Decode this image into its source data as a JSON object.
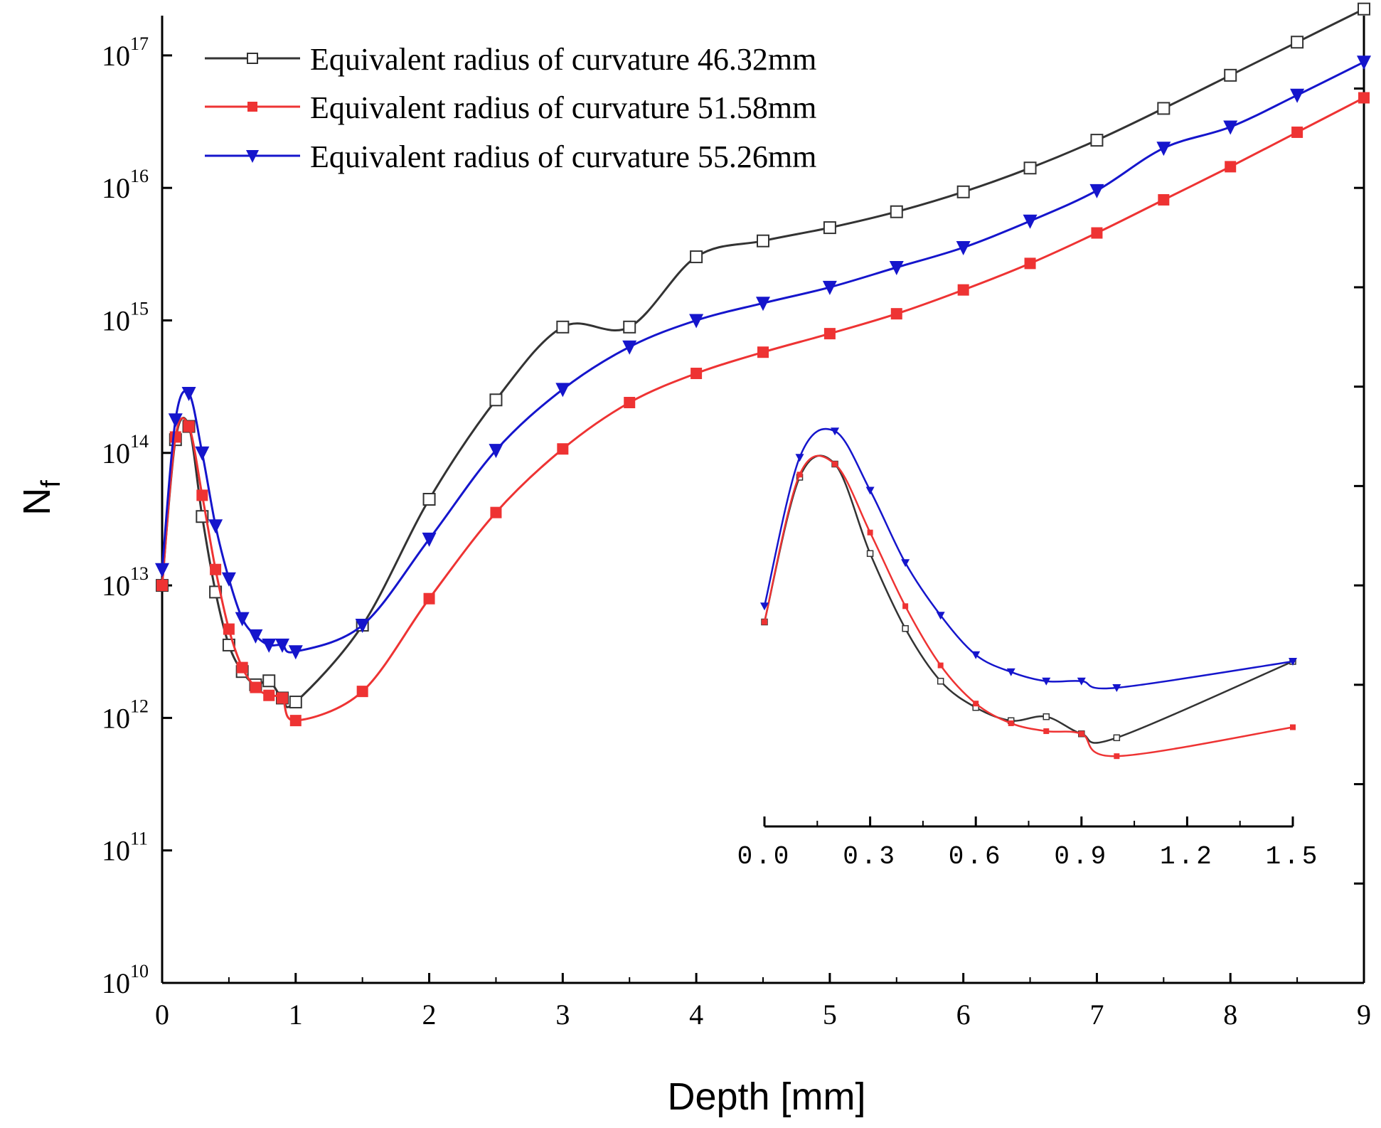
{
  "chart_data": [
    {
      "type": "line",
      "xlabel": "Depth [mm]",
      "ylabel": "N_f",
      "ylabel_main": "N",
      "ylabel_sub": "f",
      "xlim": [
        0,
        9
      ],
      "ylim_exp": [
        10,
        17.3
      ],
      "yscale": "log",
      "x_ticks": [
        0,
        1,
        2,
        3,
        4,
        5,
        6,
        7,
        8,
        9
      ],
      "x_tick_labels": [
        "0",
        "1",
        "2",
        "3",
        "4",
        "5",
        "6",
        "7",
        "8",
        "9"
      ],
      "y_tick_exps": [
        10,
        11,
        12,
        13,
        14,
        15,
        16,
        17
      ],
      "y_tick_bases": [
        "10",
        "10",
        "10",
        "10",
        "10",
        "10",
        "10",
        "10"
      ],
      "y_tick_powers": [
        "10",
        "11",
        "12",
        "13",
        "14",
        "15",
        "16",
        "17"
      ],
      "legend_position": "top-left",
      "grid": false,
      "series": [
        {
          "name": "Equivalent radius of curvature 46.32mm",
          "color": "#333333",
          "marker": "open-square",
          "x": [
            0,
            0.1,
            0.2,
            0.3,
            0.4,
            0.5,
            0.6,
            0.7,
            0.8,
            0.9,
            1.0,
            1.5,
            2.0,
            2.5,
            3.0,
            3.5,
            4.0,
            4.5,
            5.0,
            5.5,
            6.0,
            6.5,
            7.0,
            7.5,
            8.0,
            8.5,
            9.0
          ],
          "y_exp": [
            13.0,
            14.1,
            14.2,
            13.52,
            12.95,
            12.55,
            12.35,
            12.25,
            12.28,
            12.15,
            12.12,
            12.7,
            13.65,
            14.4,
            14.95,
            14.95,
            15.48,
            15.6,
            15.7,
            15.82,
            15.97,
            16.15,
            16.36,
            16.6,
            16.85,
            17.1,
            17.35
          ],
          "y_labels": [
            "1.0E13",
            "1.3E14",
            "1.6E14",
            "3.3E13",
            "8.9E12",
            "3.5E12",
            "2.2E12",
            "1.8E12",
            "1.9E12",
            "1.4E12",
            "1.3E12",
            "5E12",
            "4.5E13",
            "2.5E14",
            "8.9E14",
            "8.9E14",
            "3.0E15",
            "4.0E15",
            "5.0E15",
            "6.6E15",
            "9.3E15",
            "1.4E16",
            "2.3E16",
            "4.0E16",
            "7.1E16",
            "1.26E17",
            "2.2E17"
          ]
        },
        {
          "name": "Equivalent radius of curvature 51.58mm",
          "color": "#ee3333",
          "marker": "filled-square",
          "x": [
            0,
            0.1,
            0.2,
            0.3,
            0.4,
            0.5,
            0.6,
            0.7,
            0.8,
            0.9,
            1.0,
            1.5,
            2.0,
            2.5,
            3.0,
            3.5,
            4.0,
            4.5,
            5.0,
            5.5,
            6.0,
            6.5,
            7.0,
            7.5,
            8.0,
            8.5,
            9.0
          ],
          "y_exp": [
            13.0,
            14.12,
            14.2,
            13.68,
            13.12,
            12.67,
            12.38,
            12.23,
            12.17,
            12.15,
            11.98,
            12.2,
            12.9,
            13.55,
            14.03,
            14.38,
            14.6,
            14.76,
            14.9,
            15.05,
            15.23,
            15.43,
            15.66,
            15.91,
            16.16,
            16.42,
            16.68
          ],
          "y_labels": [
            "1.0E13",
            "1.3E14",
            "1.6E14",
            "4.8E13",
            "1.3E13",
            "4.7E12",
            "2.4E12",
            "1.7E12",
            "1.5E12",
            "1.4E12",
            "9.6E11",
            "1.6E12",
            "7.9E12",
            "3.5E13",
            "1.1E14",
            "2.4E14",
            "4.0E14",
            "5.8E14",
            "7.9E14",
            "1.1E15",
            "1.7E15",
            "2.7E15",
            "4.6E15",
            "8.1E15",
            "1.4E16",
            "2.6E16",
            "4.8E16"
          ]
        },
        {
          "name": "Equivalent radius of curvature 55.26mm",
          "color": "#1515cc",
          "marker": "filled-triangle-down",
          "x": [
            0,
            0.1,
            0.2,
            0.3,
            0.4,
            0.5,
            0.6,
            0.7,
            0.8,
            0.9,
            1.0,
            1.5,
            2.0,
            2.5,
            3.0,
            3.5,
            4.0,
            4.5,
            5.0,
            5.5,
            6.0,
            6.5,
            7.0,
            7.5,
            8.0,
            8.5,
            9.0
          ],
          "y_exp": [
            13.12,
            14.25,
            14.45,
            14.0,
            13.45,
            13.05,
            12.75,
            12.62,
            12.55,
            12.55,
            12.5,
            12.7,
            13.35,
            14.02,
            14.48,
            14.8,
            15.0,
            15.13,
            15.25,
            15.4,
            15.55,
            15.75,
            15.98,
            16.3,
            16.46,
            16.7,
            16.95
          ],
          "y_labels": [
            "1.3E13",
            "1.8E14",
            "2.8E14",
            "1.0E14",
            "2.8E13",
            "1.1E13",
            "5.6E12",
            "4.2E12",
            "3.5E12",
            "3.5E12",
            "3.2E12",
            "5.0E12",
            "2.2E13",
            "1.0E14",
            "3.0E14",
            "6.3E14",
            "1.0E15",
            "1.35E15",
            "1.8E15",
            "2.5E15",
            "3.5E15",
            "5.6E15",
            "9.5E15",
            "2.0E16",
            "2.9E16",
            "5.0E16",
            "8.9E16"
          ]
        }
      ]
    },
    {
      "type": "line",
      "role": "inset",
      "xlim": [
        0,
        1.5
      ],
      "x_ticks": [
        0.0,
        0.3,
        0.6,
        0.9,
        1.2,
        1.5
      ],
      "x_tick_labels": [
        "0.0",
        "0.3",
        "0.6",
        "0.9",
        "1.2",
        "1.5"
      ],
      "series": [
        {
          "name": "Equivalent radius of curvature 46.32mm",
          "color": "#333333",
          "x": [
            0,
            0.1,
            0.2,
            0.3,
            0.4,
            0.5,
            0.6,
            0.7,
            0.8,
            0.9,
            1.0,
            1.5
          ],
          "y_exp": [
            13.0,
            14.1,
            14.2,
            13.52,
            12.95,
            12.55,
            12.35,
            12.25,
            12.28,
            12.15,
            12.12,
            12.7
          ]
        },
        {
          "name": "Equivalent radius of curvature 51.58mm",
          "color": "#ee3333",
          "x": [
            0,
            0.1,
            0.2,
            0.3,
            0.4,
            0.5,
            0.6,
            0.7,
            0.8,
            0.9,
            1.0,
            1.5
          ],
          "y_exp": [
            13.0,
            14.12,
            14.2,
            13.68,
            13.12,
            12.67,
            12.38,
            12.23,
            12.17,
            12.15,
            11.98,
            12.2
          ]
        },
        {
          "name": "Equivalent radius of curvature 55.26mm",
          "color": "#1515cc",
          "x": [
            0,
            0.1,
            0.2,
            0.3,
            0.4,
            0.5,
            0.6,
            0.7,
            0.8,
            0.9,
            1.0,
            1.5
          ],
          "y_exp": [
            13.12,
            14.25,
            14.45,
            14.0,
            13.45,
            13.05,
            12.75,
            12.62,
            12.55,
            12.55,
            12.5,
            12.7
          ]
        }
      ]
    }
  ]
}
